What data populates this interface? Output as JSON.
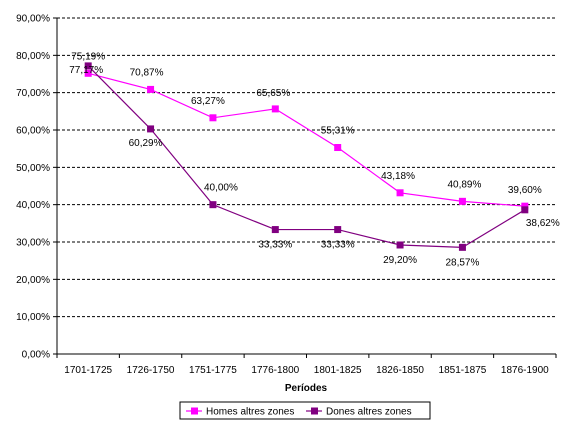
{
  "chart_data": {
    "type": "line",
    "title": "",
    "xlabel": "Períodes",
    "ylabel": "",
    "ylim": [
      0,
      90
    ],
    "y_tick_labels": [
      "0,00%",
      "10,00%",
      "20,00%",
      "30,00%",
      "40,00%",
      "50,00%",
      "60,00%",
      "70,00%",
      "80,00%",
      "90,00%"
    ],
    "y_ticks": [
      0,
      10,
      20,
      30,
      40,
      50,
      60,
      70,
      80,
      90
    ],
    "grid": "horizontal dashed",
    "legend_position": "bottom",
    "categories": [
      "1701-1725",
      "1726-1750",
      "1751-1775",
      "1776-1800",
      "1801-1825",
      "1826-1850",
      "1851-1875",
      "1876-1900"
    ],
    "series": [
      {
        "name": "Homes altres zones",
        "color": "#ff00ff",
        "values": [
          75.19,
          70.87,
          63.27,
          65.65,
          55.31,
          43.18,
          40.89,
          39.6
        ],
        "labels": [
          "75,19%",
          "70,87%",
          "63,27%",
          "65,65%",
          "55,31%",
          "43,18%",
          "40,89%",
          "39,60%"
        ]
      },
      {
        "name": "Dones altres zones",
        "color": "#800080",
        "values": [
          77.17,
          60.29,
          40.0,
          33.33,
          33.33,
          29.2,
          28.57,
          38.62
        ],
        "labels": [
          "77,17%",
          "60,29%",
          "40,00%",
          "33,33%",
          "33,33%",
          "29,20%",
          "28,57%",
          "38,62%"
        ]
      }
    ]
  }
}
